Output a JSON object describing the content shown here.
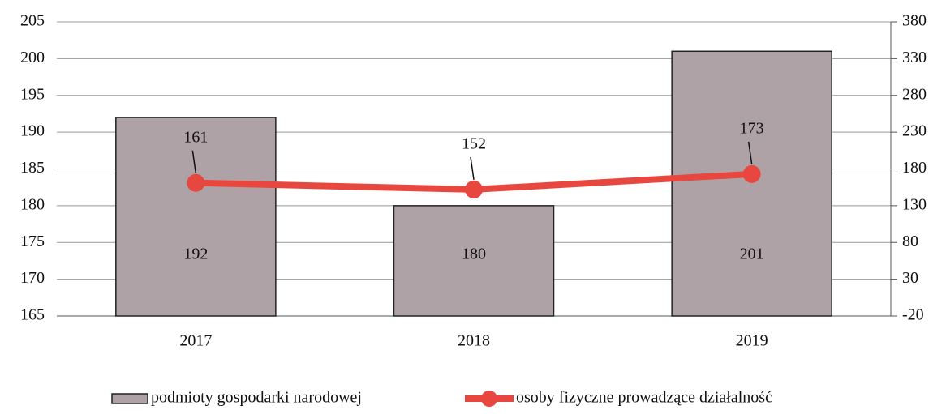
{
  "chart_data": {
    "type": "bar",
    "categories": [
      "2017",
      "2018",
      "2019"
    ],
    "series": [
      {
        "name": "podmioty gospodarki narodowej",
        "type": "bar",
        "color": "#aea2a7",
        "values": [
          192,
          180,
          201
        ]
      },
      {
        "name": "osoby fizyczne prowadzące działalność",
        "type": "line",
        "color": "#e8473f",
        "axis": "y2",
        "values": [
          161,
          152,
          173
        ]
      }
    ],
    "ylim": [
      165,
      205
    ],
    "yticks": [
      165,
      170,
      175,
      180,
      185,
      190,
      195,
      200,
      205
    ],
    "y2lim": [
      -20,
      380
    ],
    "y2ticks": [
      -20,
      30,
      80,
      130,
      180,
      230,
      280,
      330,
      380
    ],
    "grid": true,
    "legend": "bottom"
  }
}
